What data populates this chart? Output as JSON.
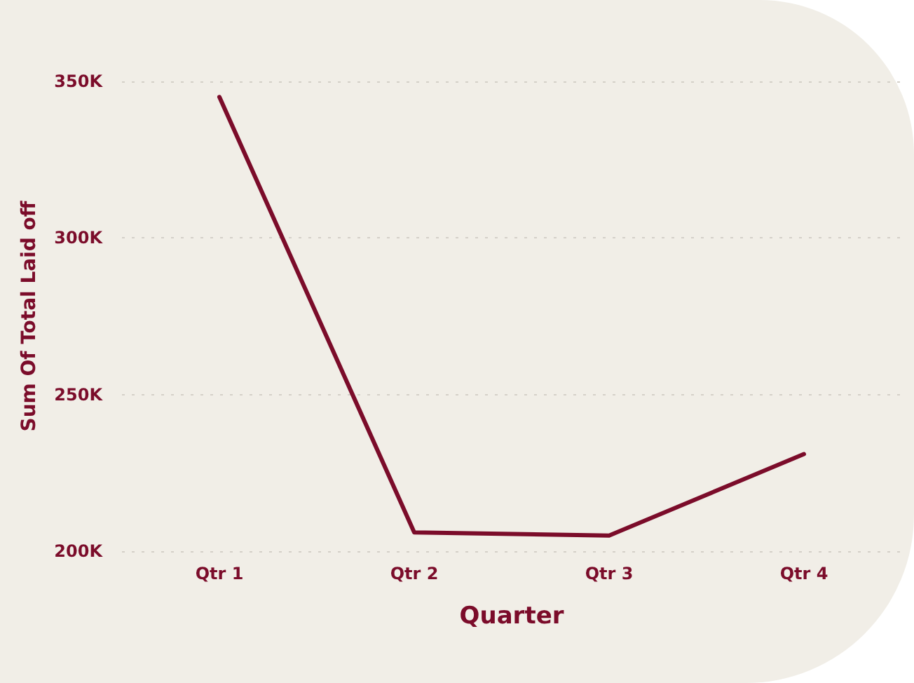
{
  "chart_data": {
    "type": "line",
    "xlabel": "Quarter",
    "ylabel": "Sum Of Total Laid off",
    "categories": [
      "Qtr 1",
      "Qtr 2",
      "Qtr 3",
      "Qtr 4"
    ],
    "series": [
      {
        "color": "#7b0c2a",
        "values": [
          345000,
          206000,
          205000,
          231000
        ]
      }
    ],
    "ylim": [
      200000,
      350000
    ],
    "yticks": [
      {
        "value": 200000,
        "label": "200K"
      },
      {
        "value": 250000,
        "label": "250K"
      },
      {
        "value": 300000,
        "label": "300K"
      },
      {
        "value": 350000,
        "label": "350K"
      }
    ],
    "grid": "y",
    "marker": "none",
    "line_style": "solid"
  }
}
